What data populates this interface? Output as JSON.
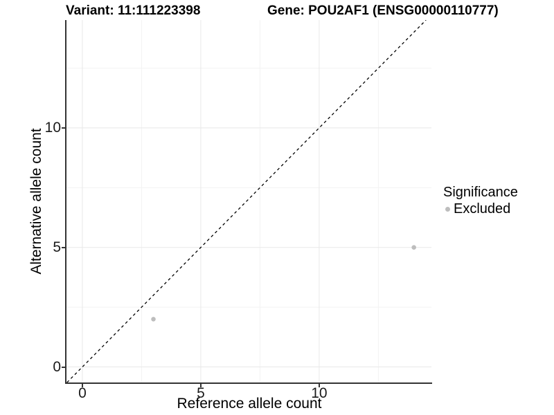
{
  "titles": {
    "left": "Variant: 11:111223398",
    "right": "Gene: POU2AF1 (ENSG00000110777)"
  },
  "chart_data": {
    "type": "scatter",
    "title_left": "Variant: 11:111223398",
    "title_right": "Gene: POU2AF1 (ENSG00000110777)",
    "xlabel": "Reference allele count",
    "ylabel": "Alternative allele count",
    "xlim": [
      -0.7,
      14.74
    ],
    "ylim": [
      -0.65,
      14.51
    ],
    "x_ticks": [
      0,
      5,
      10
    ],
    "y_ticks": [
      0,
      5,
      10
    ],
    "x_minor_ticks": [
      2.5,
      7.5,
      12.5
    ],
    "y_minor_ticks": [
      2.5,
      7.5,
      12.5
    ],
    "grid": "major and minor gridlines, light gray on white panel",
    "series": [
      {
        "name": "Excluded",
        "color": "#bdbdbd",
        "points": [
          [
            3,
            2
          ],
          [
            14,
            5
          ]
        ]
      }
    ],
    "annotations": [
      {
        "type": "abline",
        "slope": 1,
        "intercept": 0,
        "linetype": "dashed",
        "color": "#000000"
      }
    ],
    "legend": {
      "title": "Significance",
      "position": "right",
      "items": [
        {
          "label": "Excluded",
          "color": "#bdbdbd"
        }
      ]
    }
  },
  "colors": {
    "background": "#ffffff",
    "axis_line": "#333333",
    "grid_major": "#e8e8e8",
    "grid_minor": "#f3f3f3",
    "point": "#bdbdbd",
    "text": "#000000"
  }
}
